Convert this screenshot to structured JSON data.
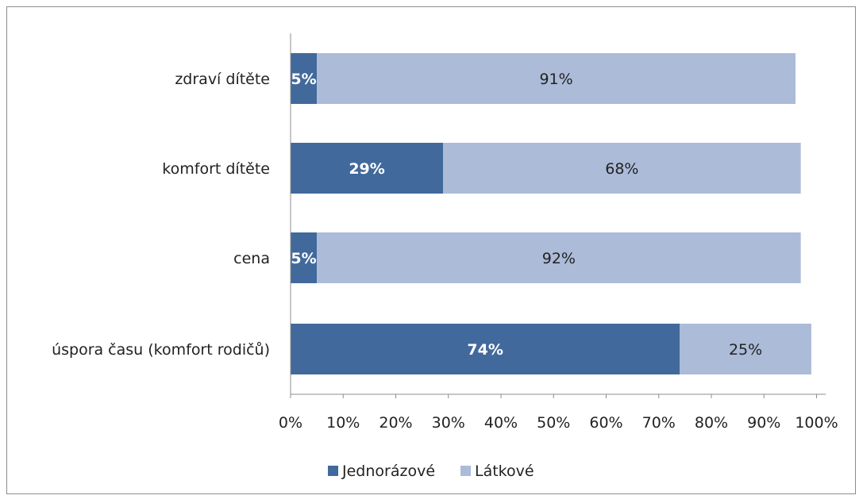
{
  "chart_data": {
    "type": "bar",
    "orientation": "horizontal",
    "stacked": true,
    "categories": [
      "zdraví dítěte",
      "komfort dítěte",
      "cena",
      "úspora času (komfort rodičů)"
    ],
    "series": [
      {
        "name": "Jednorázové",
        "color": "#41699b",
        "label_color": "#ffffff",
        "values": [
          5,
          29,
          5,
          74
        ],
        "labels": [
          "5%",
          "29%",
          "5%",
          "74%"
        ]
      },
      {
        "name": "Látkové",
        "color": "#abbbd8",
        "label_color": "#222222",
        "values": [
          91,
          68,
          92,
          25
        ],
        "labels": [
          "91%",
          "68%",
          "92%",
          "25%"
        ]
      }
    ],
    "x_ticks": [
      "0%",
      "10%",
      "20%",
      "30%",
      "40%",
      "50%",
      "60%",
      "70%",
      "80%",
      "90%",
      "100%"
    ],
    "xlim": [
      0,
      100
    ],
    "grid": false,
    "legend_position": "bottom",
    "title": "",
    "xlabel": "",
    "ylabel": ""
  }
}
